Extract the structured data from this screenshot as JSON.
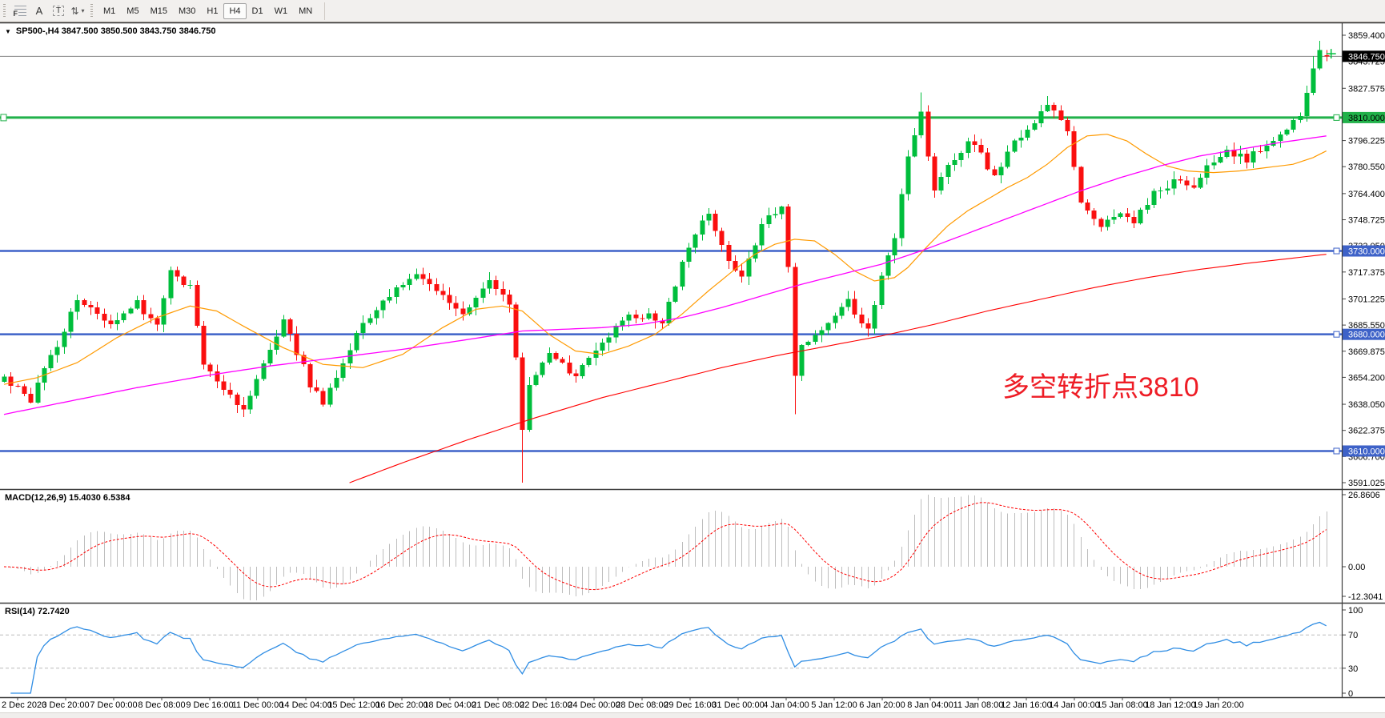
{
  "toolbar": {
    "tools": [
      {
        "name": "fibonacci-tool",
        "label": "F"
      },
      {
        "name": "text-tool",
        "label": "A"
      },
      {
        "name": "text-label-tool",
        "label": "T"
      },
      {
        "name": "arrows-tool",
        "label": "⇅"
      }
    ],
    "dropdown_caret": "▼",
    "timeframes": [
      "M1",
      "M5",
      "M15",
      "M30",
      "H1",
      "H4",
      "D1",
      "W1",
      "MN"
    ],
    "active_timeframe": "H4"
  },
  "chart_header": {
    "collapse_glyph": "▼",
    "text": "SP500-,H4  3847.500 3850.500 3843.750 3846.750"
  },
  "annotation": {
    "text": "多空转折点3810",
    "color": "#EE1C25"
  },
  "indicator_labels": {
    "macd": "MACD(12,26,9) 15.4030 6.5384",
    "rsi": "RSI(14) 72.7420"
  },
  "price_axis": {
    "ticks": [
      {
        "v": 3859.4,
        "t": "3859.400"
      },
      {
        "v": 3843.725,
        "t": "3843.725"
      },
      {
        "v": 3827.575,
        "t": "3827.575"
      },
      {
        "v": 3796.225,
        "t": "3796.225"
      },
      {
        "v": 3780.55,
        "t": "3780.550"
      },
      {
        "v": 3764.4,
        "t": "3764.400"
      },
      {
        "v": 3748.725,
        "t": "3748.725"
      },
      {
        "v": 3733.05,
        "t": "3733.050"
      },
      {
        "v": 3717.375,
        "t": "3717.375"
      },
      {
        "v": 3701.225,
        "t": "3701.225"
      },
      {
        "v": 3685.55,
        "t": "3685.550"
      },
      {
        "v": 3669.875,
        "t": "3669.875"
      },
      {
        "v": 3654.2,
        "t": "3654.200"
      },
      {
        "v": 3638.05,
        "t": "3638.050"
      },
      {
        "v": 3622.375,
        "t": "3622.375"
      },
      {
        "v": 3606.7,
        "t": "3606.700"
      },
      {
        "v": 3591.025,
        "t": "3591.025"
      }
    ],
    "current": {
      "v": 3846.75,
      "t": "3846.750",
      "box_bg": "#000000",
      "box_text": "#ffffff"
    }
  },
  "hlines": [
    {
      "price": 3810,
      "label": "3810.000",
      "color": "#21B14A",
      "text_color": "#000000",
      "width": 3
    },
    {
      "price": 3730,
      "label": "3730.000",
      "color": "#3E62C8",
      "text_color": "#ffffff",
      "width": 2.5
    },
    {
      "price": 3680,
      "label": "3680.000",
      "color": "#3E62C8",
      "text_color": "#ffffff",
      "width": 2.5
    },
    {
      "price": 3610,
      "label": "3610.000",
      "color": "#3E62C8",
      "text_color": "#ffffff",
      "width": 2.5
    }
  ],
  "macd_axis": [
    {
      "v": 26.8606,
      "t": "26.8606"
    },
    {
      "v": 0,
      "t": "0.00"
    },
    {
      "v": -12.3041,
      "t": "-12.3041"
    }
  ],
  "rsi_axis": [
    {
      "v": 100,
      "t": "100"
    },
    {
      "v": 70,
      "t": "70"
    },
    {
      "v": 30,
      "t": "30"
    },
    {
      "v": 0,
      "t": "0"
    }
  ],
  "time_axis": {
    "labels": [
      "2 Dec 2020",
      "3 Dec 20:00",
      "7 Dec 00:00",
      "8 Dec 08:00",
      "9 Dec 16:00",
      "11 Dec 00:00",
      "14 Dec 04:00",
      "15 Dec 12:00",
      "16 Dec 20:00",
      "18 Dec 04:00",
      "21 Dec 08:00",
      "22 Dec 16:00",
      "24 Dec 00:00",
      "28 Dec 08:00",
      "29 Dec 16:00",
      "31 Dec 00:00",
      "4 Jan 04:00",
      "5 Jan 12:00",
      "6 Jan 20:00",
      "8 Jan 04:00",
      "11 Jan 08:00",
      "12 Jan 16:00",
      "14 Jan 00:00",
      "15 Jan 08:00",
      "18 Jan 12:00",
      "19 Jan 20:00"
    ]
  },
  "chart_data": {
    "type": "candlestick",
    "symbol": "SP500-",
    "timeframe": "H4",
    "current_bar": {
      "open": 3847.5,
      "high": 3850.5,
      "low": 3843.75,
      "close": 3846.75
    },
    "bars_total": 200,
    "y_axis": {
      "top_price": 3859.4,
      "bottom_price": 3591.025
    },
    "price_waypoints": [
      [
        0,
        3655
      ],
      [
        4,
        3641
      ],
      [
        11,
        3700
      ],
      [
        16,
        3688
      ],
      [
        20,
        3698
      ],
      [
        23,
        3687
      ],
      [
        25,
        3720
      ],
      [
        28,
        3708
      ],
      [
        30,
        3662
      ],
      [
        36,
        3634
      ],
      [
        42,
        3690
      ],
      [
        46,
        3650
      ],
      [
        48,
        3638
      ],
      [
        53,
        3680
      ],
      [
        57,
        3700
      ],
      [
        62,
        3717
      ],
      [
        66,
        3702
      ],
      [
        69,
        3692
      ],
      [
        73,
        3712
      ],
      [
        76,
        3700
      ],
      [
        77,
        3668
      ],
      [
        78,
        3625
      ],
      [
        79,
        3650
      ],
      [
        82,
        3670
      ],
      [
        86,
        3655
      ],
      [
        89,
        3670
      ],
      [
        93,
        3688
      ],
      [
        96,
        3692
      ],
      [
        99,
        3689
      ],
      [
        102,
        3722
      ],
      [
        104,
        3742
      ],
      [
        106,
        3753
      ],
      [
        109,
        3726
      ],
      [
        111,
        3713
      ],
      [
        114,
        3746
      ],
      [
        117,
        3755
      ],
      [
        118,
        3720
      ],
      [
        119,
        3655
      ],
      [
        120,
        3675
      ],
      [
        125,
        3690
      ],
      [
        127,
        3700
      ],
      [
        130,
        3682
      ],
      [
        132,
        3715
      ],
      [
        134,
        3740
      ],
      [
        135,
        3762
      ],
      [
        136,
        3788
      ],
      [
        138,
        3812
      ],
      [
        140,
        3765
      ],
      [
        142,
        3780
      ],
      [
        145,
        3795
      ],
      [
        147,
        3788
      ],
      [
        149,
        3775
      ],
      [
        151,
        3790
      ],
      [
        154,
        3802
      ],
      [
        157,
        3818
      ],
      [
        160,
        3800
      ],
      [
        162,
        3760
      ],
      [
        165,
        3744
      ],
      [
        168,
        3752
      ],
      [
        170,
        3748
      ],
      [
        173,
        3765
      ],
      [
        176,
        3772
      ],
      [
        179,
        3768
      ],
      [
        181,
        3780
      ],
      [
        184,
        3790
      ],
      [
        187,
        3784
      ],
      [
        190,
        3795
      ],
      [
        192,
        3800
      ],
      [
        195,
        3812
      ],
      [
        197,
        3838
      ],
      [
        198,
        3850
      ],
      [
        199,
        3846.75
      ]
    ],
    "special_bars": {
      "78": {
        "low": 3591
      },
      "119": {
        "low": 3632
      },
      "138": {
        "high": 3825
      },
      "157": {
        "high": 3823
      },
      "197": {
        "high": 3847
      },
      "198": {
        "high": 3856
      },
      "199": {
        "open": 3847.5,
        "high": 3850.5,
        "low": 3843.75,
        "close": 3846.75
      }
    },
    "candle_colors": {
      "up": "#00BE3C",
      "down": "#FA0F0F"
    },
    "moving_averages": [
      {
        "name": "fast-ma",
        "color": "#FF9A00",
        "width": 1.2,
        "waypoints": [
          [
            0,
            3650
          ],
          [
            5,
            3654
          ],
          [
            11,
            3663
          ],
          [
            17,
            3678
          ],
          [
            23,
            3690
          ],
          [
            28,
            3697
          ],
          [
            32,
            3694
          ],
          [
            36,
            3685
          ],
          [
            42,
            3672
          ],
          [
            48,
            3662
          ],
          [
            54,
            3660
          ],
          [
            60,
            3668
          ],
          [
            66,
            3684
          ],
          [
            71,
            3695
          ],
          [
            75,
            3697
          ],
          [
            78,
            3694
          ],
          [
            82,
            3680
          ],
          [
            86,
            3670
          ],
          [
            90,
            3668
          ],
          [
            94,
            3673
          ],
          [
            98,
            3680
          ],
          [
            102,
            3692
          ],
          [
            106,
            3706
          ],
          [
            110,
            3719
          ],
          [
            113,
            3728
          ],
          [
            116,
            3734
          ],
          [
            119,
            3737
          ],
          [
            122,
            3736
          ],
          [
            125,
            3728
          ],
          [
            128,
            3718
          ],
          [
            131,
            3712
          ],
          [
            134,
            3714
          ],
          [
            136,
            3720
          ],
          [
            139,
            3733
          ],
          [
            142,
            3745
          ],
          [
            145,
            3754
          ],
          [
            148,
            3761
          ],
          [
            151,
            3768
          ],
          [
            154,
            3774
          ],
          [
            157,
            3782
          ],
          [
            160,
            3792
          ],
          [
            163,
            3799
          ],
          [
            166,
            3800
          ],
          [
            169,
            3796
          ],
          [
            172,
            3788
          ],
          [
            175,
            3781
          ],
          [
            178,
            3778
          ],
          [
            182,
            3777
          ],
          [
            186,
            3778
          ],
          [
            190,
            3780
          ],
          [
            194,
            3782
          ],
          [
            197,
            3786
          ],
          [
            199,
            3790
          ]
        ]
      },
      {
        "name": "medium-ma",
        "color": "#FF00FF",
        "width": 1.3,
        "waypoints": [
          [
            0,
            3632
          ],
          [
            10,
            3640
          ],
          [
            20,
            3648
          ],
          [
            30,
            3655
          ],
          [
            40,
            3661
          ],
          [
            50,
            3666
          ],
          [
            60,
            3671
          ],
          [
            70,
            3677
          ],
          [
            78,
            3682
          ],
          [
            84,
            3683
          ],
          [
            90,
            3684
          ],
          [
            96,
            3686
          ],
          [
            102,
            3690
          ],
          [
            108,
            3696
          ],
          [
            114,
            3703
          ],
          [
            120,
            3710
          ],
          [
            126,
            3716
          ],
          [
            132,
            3722
          ],
          [
            138,
            3730
          ],
          [
            144,
            3739
          ],
          [
            150,
            3748
          ],
          [
            156,
            3757
          ],
          [
            162,
            3766
          ],
          [
            168,
            3774
          ],
          [
            174,
            3781
          ],
          [
            180,
            3787
          ],
          [
            186,
            3791
          ],
          [
            192,
            3795
          ],
          [
            199,
            3799
          ]
        ]
      },
      {
        "name": "slow-ma",
        "color": "#FF0000",
        "width": 1.1,
        "waypoints": [
          [
            52,
            3591
          ],
          [
            60,
            3603
          ],
          [
            70,
            3617
          ],
          [
            80,
            3630
          ],
          [
            90,
            3642
          ],
          [
            100,
            3652
          ],
          [
            108,
            3660
          ],
          [
            116,
            3667
          ],
          [
            124,
            3673
          ],
          [
            132,
            3679
          ],
          [
            140,
            3686
          ],
          [
            148,
            3694
          ],
          [
            156,
            3701
          ],
          [
            164,
            3708
          ],
          [
            172,
            3714
          ],
          [
            180,
            3719
          ],
          [
            188,
            3723
          ],
          [
            199,
            3728
          ]
        ]
      }
    ],
    "macd": {
      "fast": 12,
      "slow": 26,
      "signal": 9,
      "histogram_color": "#BDBDBD",
      "signal_color": "#FF0000",
      "last_values": "15.4030 6.5384",
      "axis_max": 26.8606,
      "axis_min": -12.3041
    },
    "rsi": {
      "period": 14,
      "color": "#2F8DE4",
      "levels": [
        70,
        30
      ],
      "last_value": 72.742
    }
  }
}
